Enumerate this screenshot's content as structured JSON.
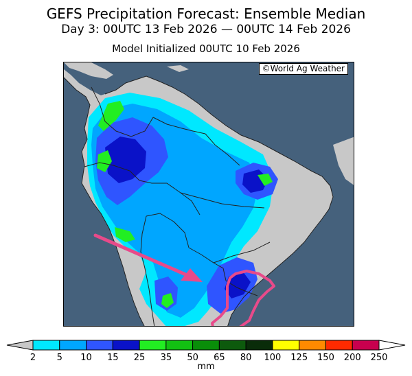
{
  "header": {
    "title": "GEFS Precipitation Forecast: Ensemble Median",
    "period": "Day 3: 00UTC 13 Feb 2026 — 00UTC 14 Feb 2026",
    "init": "Model Initialized 00UTC 10 Feb 2026"
  },
  "map": {
    "copyright": "©World Ag Weather",
    "colors": {
      "ocean": "#45617c",
      "land": "#c8c8c8",
      "border": "#222222",
      "annotation": "#e84a8a"
    }
  },
  "colorbar": {
    "unit": "mm",
    "ticks": [
      "2",
      "5",
      "10",
      "15",
      "25",
      "35",
      "50",
      "65",
      "80",
      "100",
      "125",
      "150",
      "200",
      "250"
    ],
    "colors": [
      "#00e8ff",
      "#00a6ff",
      "#2f55ff",
      "#0a12c8",
      "#22ee22",
      "#12c012",
      "#098e09",
      "#0d5a0d",
      "#092c09",
      "#ffff00",
      "#ff8a00",
      "#ff2a00",
      "#c8004e",
      "#ff00ff",
      "#9a50d2"
    ]
  }
}
